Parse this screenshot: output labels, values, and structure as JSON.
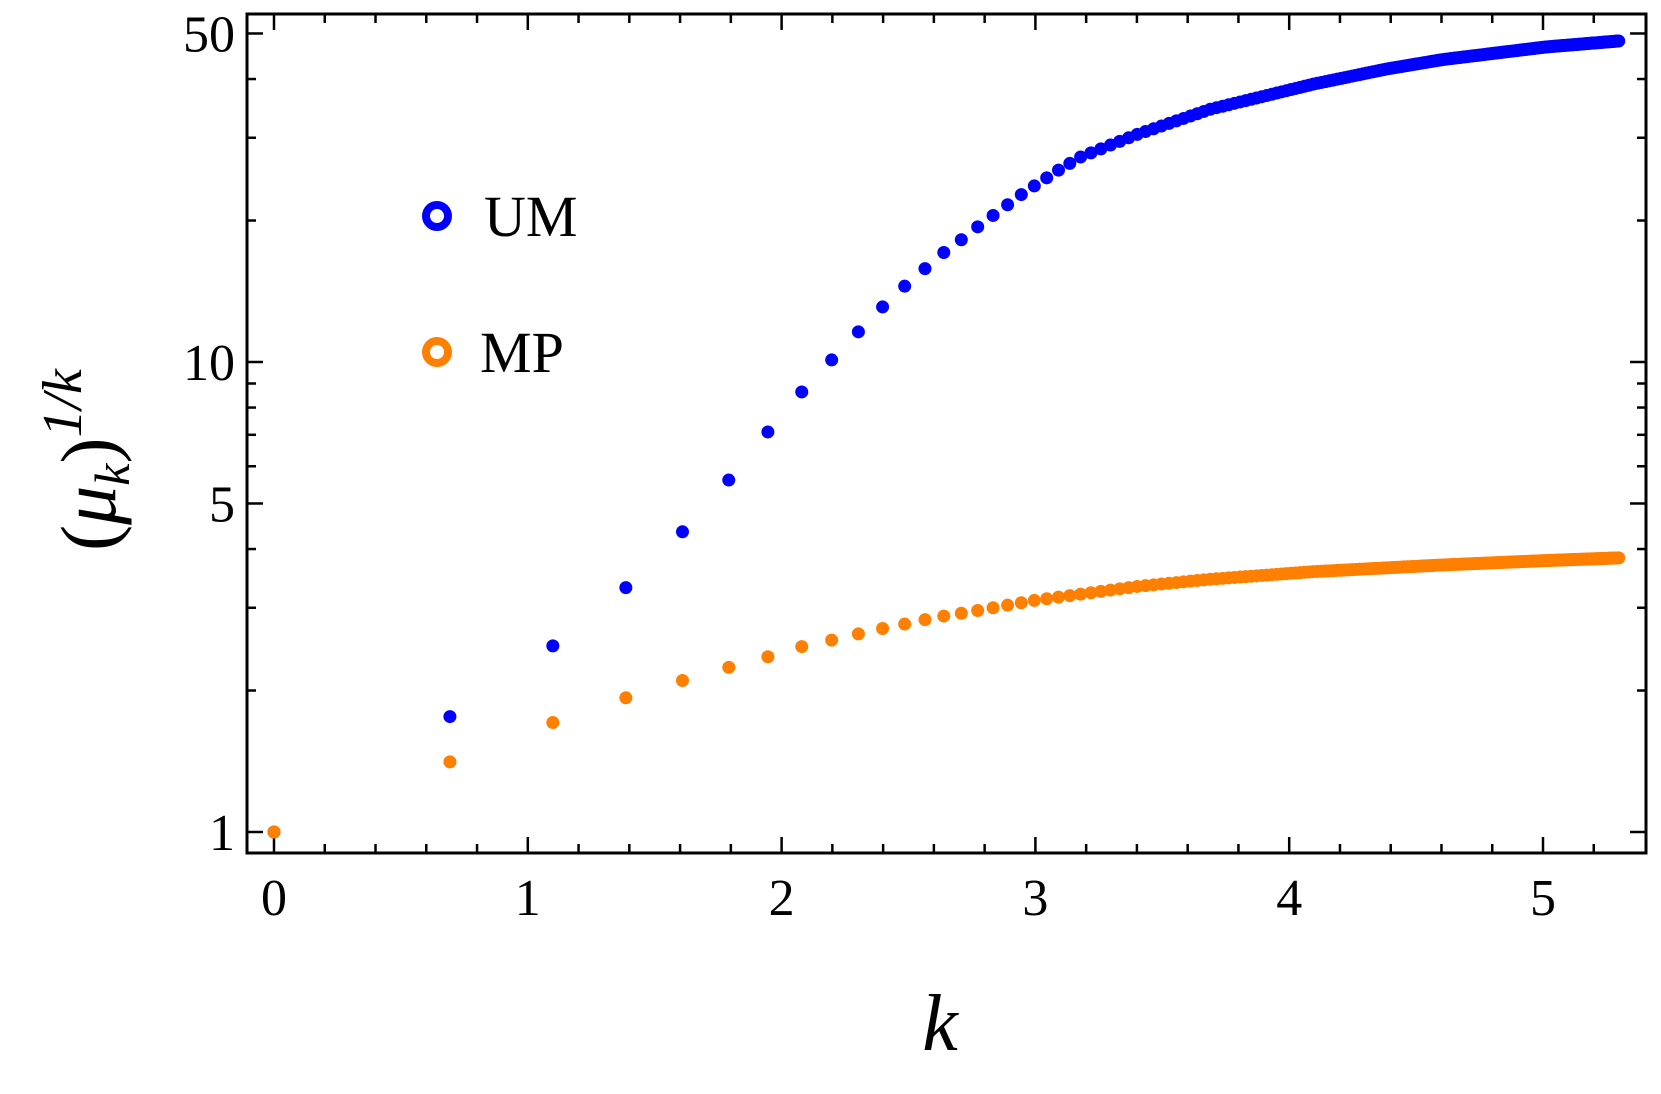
{
  "chart_data": {
    "type": "scatter",
    "title": "",
    "xlabel": "k",
    "ylabel": "(μ_k)^{1/k}",
    "ylabel_parts": {
      "open": "(",
      "mu": "μ",
      "sub": "k",
      "close": ")",
      "sup": "1/k"
    },
    "x_scale": "linear",
    "y_scale": "log",
    "xlim": [
      -0.1,
      5.4
    ],
    "ylim": [
      0.92,
      54
    ],
    "x_ticks": [
      0,
      1,
      2,
      3,
      4,
      5
    ],
    "x_tick_labels": [
      "0",
      "1",
      "2",
      "3",
      "4",
      "5"
    ],
    "y_ticks": [
      1,
      5,
      10,
      50
    ],
    "y_tick_labels": [
      "1",
      "5",
      "10",
      "50"
    ],
    "y_minor_ticks": [
      2,
      3,
      4,
      6,
      7,
      8,
      9,
      20,
      30,
      40
    ],
    "grid": false,
    "legend_position": "upper-left (inside)",
    "x_note": "points plotted at x = ln(n), n = 1..200",
    "series": [
      {
        "name": "UM",
        "color": "#0000ff",
        "points": [
          [
            0.0,
            1.0
          ],
          [
            0.693,
            1.76
          ],
          [
            1.099,
            2.49
          ],
          [
            1.386,
            3.31
          ],
          [
            1.609,
            4.35
          ],
          [
            1.792,
            5.61
          ],
          [
            1.946,
            7.1
          ],
          [
            2.079,
            8.63
          ],
          [
            2.197,
            10.1
          ],
          [
            2.303,
            11.6
          ],
          [
            2.398,
            13.1
          ],
          [
            2.485,
            14.5
          ],
          [
            2.565,
            15.8
          ],
          [
            2.639,
            17.1
          ],
          [
            2.708,
            18.2
          ],
          [
            2.773,
            19.4
          ],
          [
            2.833,
            20.5
          ],
          [
            2.89,
            21.6
          ],
          [
            2.944,
            22.7
          ],
          [
            2.996,
            23.7
          ],
          [
            3.091,
            25.6
          ],
          [
            3.178,
            27.3
          ],
          [
            3.401,
            30.5
          ],
          [
            3.689,
            34.5
          ],
          [
            4.094,
            39.0
          ],
          [
            4.382,
            42.0
          ],
          [
            4.605,
            44.0
          ],
          [
            5.011,
            46.8
          ],
          [
            5.298,
            48.2
          ]
        ]
      },
      {
        "name": "MP",
        "color": "#ff8000",
        "points": [
          [
            0.0,
            1.0
          ],
          [
            0.693,
            1.41
          ],
          [
            1.099,
            1.71
          ],
          [
            1.386,
            1.93
          ],
          [
            1.609,
            2.1
          ],
          [
            1.792,
            2.24
          ],
          [
            1.946,
            2.36
          ],
          [
            2.079,
            2.48
          ],
          [
            2.197,
            2.56
          ],
          [
            2.303,
            2.64
          ],
          [
            2.398,
            2.71
          ],
          [
            2.485,
            2.77
          ],
          [
            2.565,
            2.83
          ],
          [
            2.639,
            2.88
          ],
          [
            2.708,
            2.92
          ],
          [
            2.773,
            2.96
          ],
          [
            2.996,
            3.11
          ],
          [
            3.401,
            3.33
          ],
          [
            3.689,
            3.45
          ],
          [
            4.094,
            3.58
          ],
          [
            4.605,
            3.7
          ],
          [
            5.011,
            3.78
          ],
          [
            5.298,
            3.83
          ]
        ]
      }
    ]
  },
  "legend": {
    "items": [
      {
        "label": "UM",
        "color": "#0000ff",
        "marker": "hollow-circle"
      },
      {
        "label": "MP",
        "color": "#ff8000",
        "marker": "hollow-circle"
      }
    ]
  },
  "axes": {
    "x_title": "k",
    "y_title_open": "(",
    "y_title_mu": "μ",
    "y_title_sub": "k",
    "y_title_close": ")",
    "y_title_sup": "1/k"
  }
}
